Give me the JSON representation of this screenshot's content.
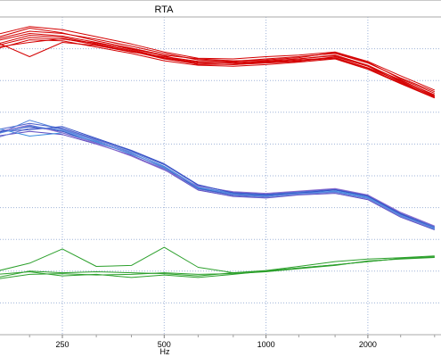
{
  "window": {
    "title": "RTA"
  },
  "chart_data": {
    "type": "line",
    "title": "RTA",
    "xlabel": "Hz",
    "ylabel": "",
    "x_scale": "log",
    "x_ticks": [
      250,
      500,
      1000,
      2000
    ],
    "x_tick_labels": [
      "250",
      "500",
      "1000",
      "2000"
    ],
    "xlim": [
      125,
      3150
    ],
    "ylim": [
      0,
      100
    ],
    "grid": true,
    "legend": "none",
    "x": [
      160,
      200,
      250,
      315,
      400,
      500,
      630,
      800,
      1000,
      1250,
      1600,
      2000,
      2500,
      3150
    ],
    "colors": {
      "red": "#d40000",
      "blue_family": [
        "#2a3fb5",
        "#4a5fcb",
        "#5c4ac0",
        "#4d7fd9",
        "#3a8dde",
        "#6f7fd8",
        "#8a6ccf",
        "#3550c6",
        "#5b8ae0"
      ],
      "green": "#2ca02c",
      "grid": "#9fb3d8",
      "frame": "#a9a9a9"
    },
    "series": [
      {
        "group": "red",
        "values": [
          91.5,
          94.2,
          93.6,
          91.5,
          89.5,
          87.0,
          85.5,
          85.0,
          85.5,
          86.0,
          87.5,
          84.5,
          79.5,
          75.0
        ]
      },
      {
        "group": "red",
        "values": [
          93.0,
          95.5,
          94.8,
          93.0,
          90.8,
          88.5,
          86.5,
          86.0,
          86.8,
          87.5,
          88.5,
          85.5,
          80.8,
          76.5
        ]
      },
      {
        "group": "red",
        "values": [
          90.0,
          92.8,
          92.5,
          90.5,
          88.5,
          86.2,
          84.8,
          84.5,
          85.0,
          85.8,
          86.8,
          83.5,
          79.0,
          74.5
        ]
      },
      {
        "group": "red",
        "values": [
          94.5,
          97.0,
          96.0,
          93.8,
          91.5,
          89.0,
          87.0,
          86.8,
          87.5,
          88.0,
          89.0,
          86.0,
          81.5,
          77.0
        ]
      },
      {
        "group": "red",
        "values": [
          92.0,
          87.5,
          92.0,
          91.0,
          89.0,
          87.5,
          86.0,
          85.8,
          86.2,
          86.8,
          88.0,
          84.8,
          80.0,
          75.5
        ]
      },
      {
        "group": "red",
        "values": [
          91.0,
          93.5,
          93.0,
          91.8,
          90.0,
          87.8,
          85.0,
          85.2,
          85.8,
          86.5,
          87.2,
          84.0,
          79.8,
          74.8
        ]
      },
      {
        "group": "red",
        "values": [
          93.5,
          96.5,
          95.0,
          92.5,
          90.2,
          88.0,
          86.8,
          86.2,
          86.5,
          87.2,
          88.8,
          85.8,
          80.5,
          76.0
        ]
      },
      {
        "group": "red",
        "values": [
          92.5,
          94.8,
          94.0,
          92.0,
          89.8,
          87.2,
          85.8,
          85.5,
          86.0,
          86.8,
          87.8,
          84.5,
          80.2,
          75.2
        ]
      },
      {
        "group": "red",
        "values": [
          90.5,
          92.0,
          93.2,
          91.2,
          89.2,
          86.8,
          85.2,
          85.0,
          85.6,
          86.2,
          87.0,
          83.8,
          79.2,
          74.6
        ]
      },
      {
        "group": "blue",
        "values": [
          63.5,
          65.5,
          64.0,
          60.5,
          57.0,
          52.5,
          46.0,
          44.0,
          43.5,
          44.5,
          45.0,
          43.0,
          37.5,
          33.5
        ]
      },
      {
        "group": "blue",
        "values": [
          64.5,
          66.5,
          65.0,
          61.5,
          57.8,
          53.5,
          47.0,
          44.8,
          44.2,
          45.0,
          45.8,
          43.8,
          38.2,
          34.0
        ]
      },
      {
        "group": "blue",
        "values": [
          62.5,
          64.0,
          63.0,
          60.0,
          56.5,
          52.0,
          45.5,
          43.5,
          43.0,
          44.0,
          44.5,
          42.5,
          37.0,
          33.0
        ]
      },
      {
        "group": "blue",
        "values": [
          63.0,
          67.5,
          64.5,
          61.0,
          57.5,
          53.0,
          46.5,
          44.5,
          44.0,
          44.8,
          45.5,
          43.5,
          37.8,
          33.8
        ]
      },
      {
        "group": "blue",
        "values": [
          65.0,
          62.5,
          63.5,
          60.8,
          56.8,
          52.8,
          46.2,
          44.2,
          43.8,
          44.5,
          45.2,
          43.2,
          37.5,
          33.2
        ]
      },
      {
        "group": "blue",
        "values": [
          62.0,
          65.0,
          64.8,
          61.2,
          57.2,
          52.2,
          45.8,
          43.8,
          43.2,
          44.2,
          44.8,
          42.8,
          37.2,
          33.4
        ]
      },
      {
        "group": "blue",
        "values": [
          63.8,
          66.0,
          63.5,
          60.2,
          56.2,
          51.8,
          46.8,
          45.0,
          44.5,
          45.2,
          46.0,
          44.0,
          38.5,
          34.2
        ]
      },
      {
        "group": "blue",
        "values": [
          64.0,
          64.5,
          65.5,
          61.8,
          58.0,
          53.8,
          47.2,
          44.6,
          44.0,
          44.6,
          45.6,
          43.6,
          38.0,
          33.6
        ]
      },
      {
        "group": "blue",
        "values": [
          63.2,
          65.8,
          64.2,
          60.6,
          57.0,
          52.6,
          46.4,
          44.2,
          43.6,
          44.4,
          45.0,
          43.0,
          37.6,
          33.5
        ]
      },
      {
        "group": "green",
        "values": [
          20.0,
          22.5,
          27.0,
          21.5,
          21.8,
          27.5,
          21.2,
          19.5,
          20.0,
          21.0,
          22.0,
          23.0,
          24.0,
          24.5
        ]
      },
      {
        "group": "green",
        "values": [
          19.0,
          19.8,
          18.5,
          19.0,
          18.0,
          18.8,
          18.0,
          19.0,
          20.0,
          21.0,
          22.0,
          23.0,
          24.0,
          24.5
        ]
      },
      {
        "group": "green",
        "values": [
          18.0,
          20.0,
          19.5,
          19.8,
          19.5,
          19.2,
          18.5,
          19.5,
          20.2,
          21.5,
          23.0,
          23.8,
          24.2,
          24.8
        ]
      },
      {
        "group": "green",
        "values": [
          17.5,
          19.0,
          19.2,
          18.8,
          19.0,
          19.5,
          19.0,
          19.2,
          19.8,
          20.8,
          21.8,
          23.2,
          23.8,
          24.3
        ]
      }
    ]
  }
}
